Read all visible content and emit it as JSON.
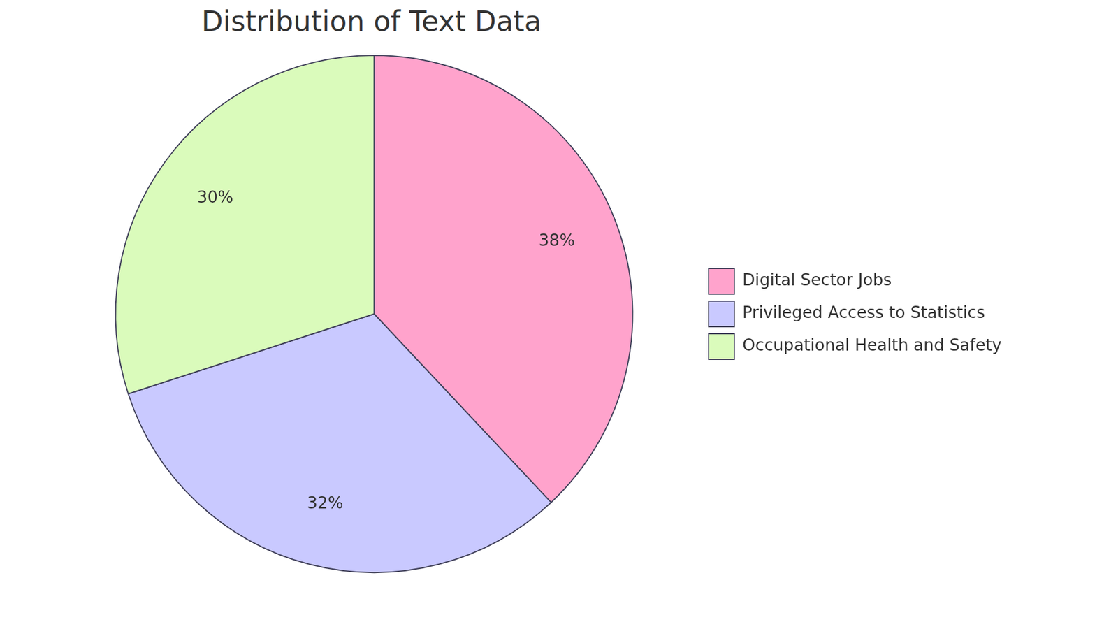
{
  "chart_data": {
    "type": "pie",
    "title": "Distribution of Text Data",
    "categories": [
      "Digital Sector Jobs",
      "Privileged Access to Statistics",
      "Occupational Health and Safety"
    ],
    "values": [
      38,
      32,
      30
    ],
    "value_labels": [
      "38%",
      "32%",
      "30%"
    ],
    "colors": [
      "#ffa3cc",
      "#c9c9ff",
      "#dafbbb"
    ],
    "data_labels": true,
    "legend": "right"
  }
}
